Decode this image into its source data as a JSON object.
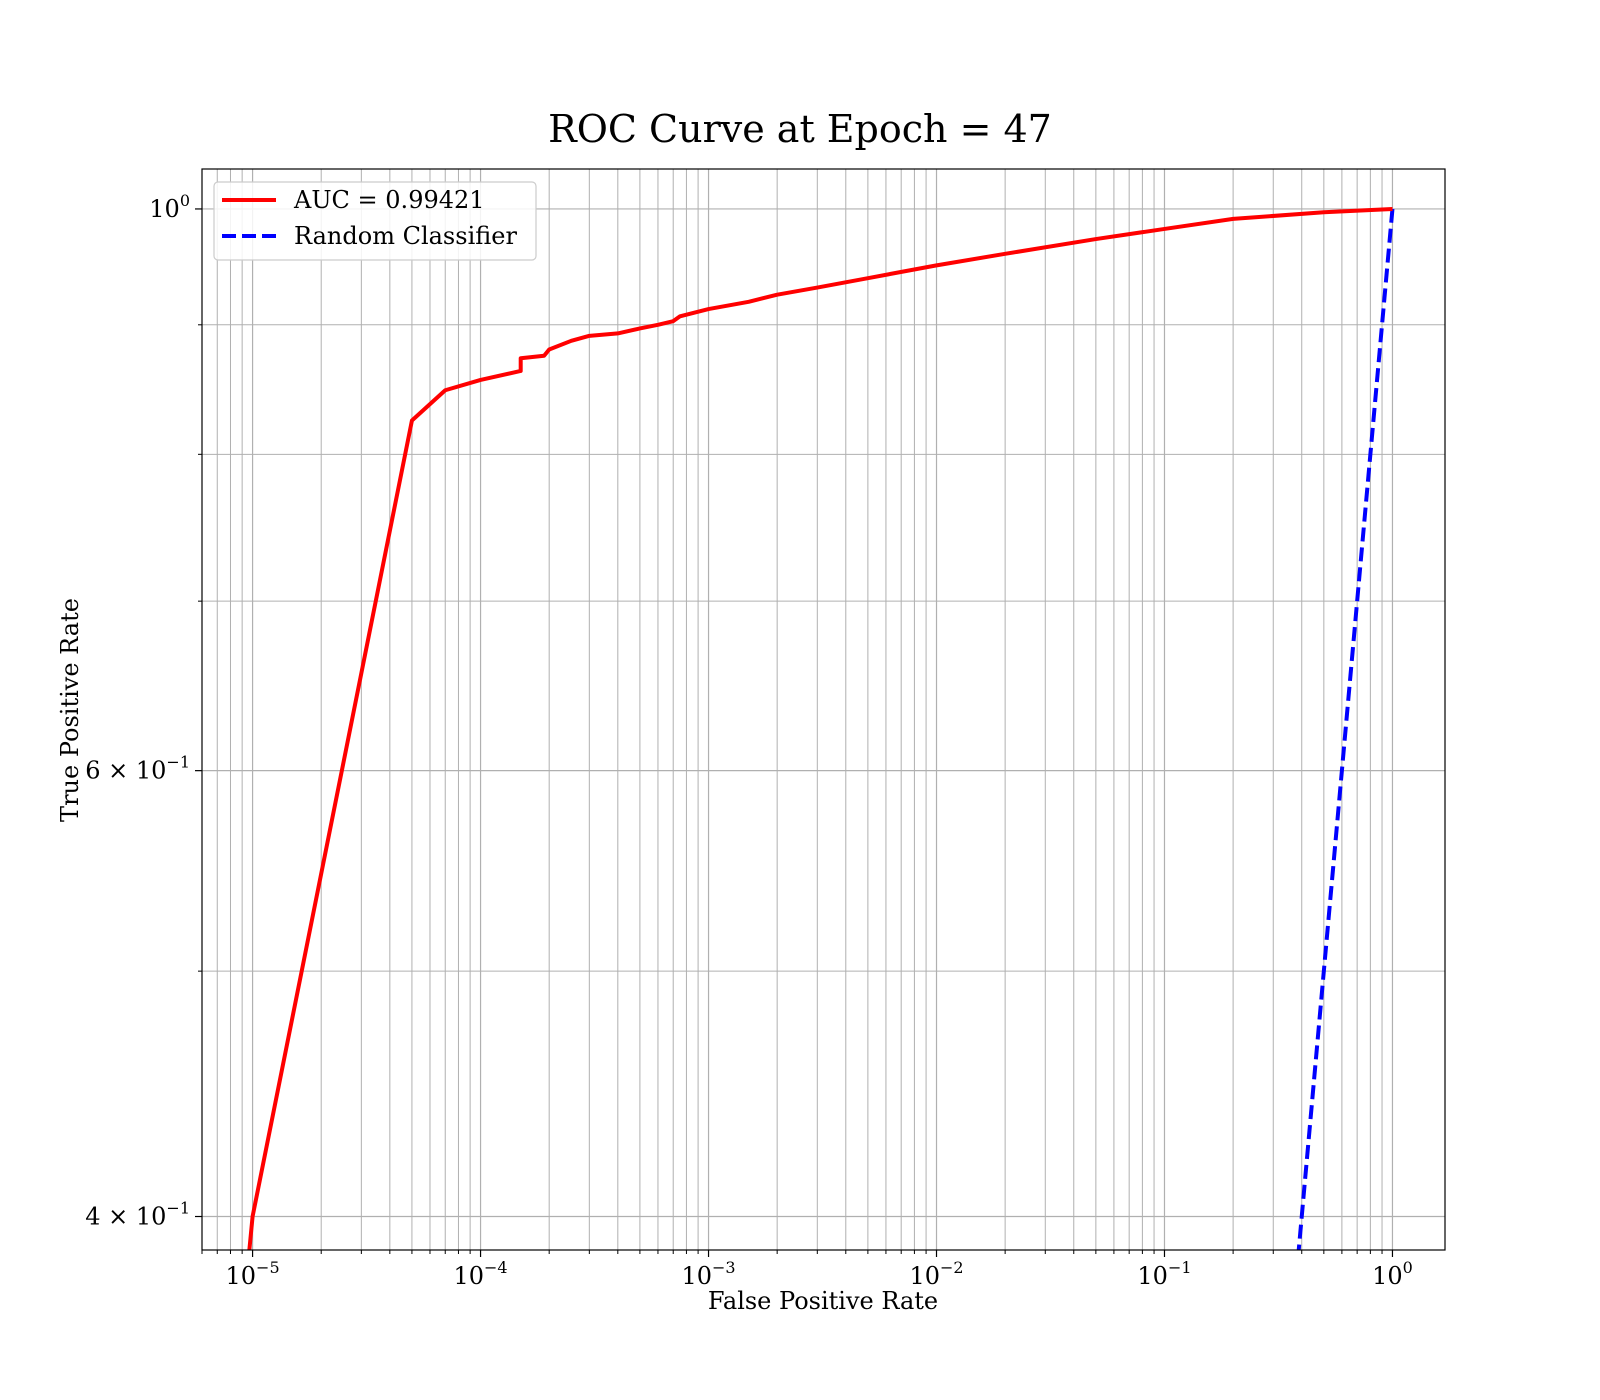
{
  "chart_data": {
    "type": "line",
    "title": "ROC Curve at Epoch = 47",
    "xlabel": "False Positive Rate",
    "ylabel": "True Positive Rate",
    "xscale": "log",
    "yscale": "log",
    "xlim": [
      6e-06,
      1.7
    ],
    "ylim": [
      0.388,
      1.037
    ],
    "grid": true,
    "grid_minor": true,
    "legend_position": "top-left",
    "x_ticks": [
      {
        "value": 1e-05,
        "base": "10",
        "exp": "−5"
      },
      {
        "value": 0.0001,
        "base": "10",
        "exp": "−4"
      },
      {
        "value": 0.001,
        "base": "10",
        "exp": "−3"
      },
      {
        "value": 0.01,
        "base": "10",
        "exp": "−2"
      },
      {
        "value": 0.1,
        "base": "10",
        "exp": "−1"
      },
      {
        "value": 1,
        "base": "10",
        "exp": "0"
      }
    ],
    "y_ticks": [
      {
        "value": 1.0,
        "base": "10",
        "exp": "0"
      },
      {
        "value": 0.6,
        "base": "6 × 10",
        "exp": "−1"
      },
      {
        "value": 0.4,
        "base": "4 × 10",
        "exp": "−1"
      }
    ],
    "y_minor_ticks": [
      0.5,
      0.7,
      0.8,
      0.9
    ],
    "series": [
      {
        "name": "AUC = 0.99421",
        "color": "#ff0000",
        "dash": "solid",
        "x": [
          9.6e-06,
          1e-05,
          5e-05,
          7e-05,
          0.0001,
          0.00015,
          0.00015,
          0.00019,
          0.0002,
          0.00025,
          0.0003,
          0.0004,
          0.0005,
          0.0006,
          0.0007,
          0.00075,
          0.001,
          0.0015,
          0.002,
          0.003,
          0.005,
          0.01,
          0.02,
          0.05,
          0.1,
          0.2,
          0.5,
          1.0
        ],
        "y": [
          0.385,
          0.4,
          0.825,
          0.848,
          0.856,
          0.863,
          0.873,
          0.875,
          0.88,
          0.887,
          0.891,
          0.893,
          0.897,
          0.9,
          0.903,
          0.907,
          0.913,
          0.919,
          0.925,
          0.931,
          0.939,
          0.95,
          0.96,
          0.973,
          0.982,
          0.991,
          0.997,
          1.0
        ]
      },
      {
        "name": "Random Classifier",
        "color": "#0000ff",
        "dash": "dashed",
        "x": [
          0.385,
          0.4,
          0.5,
          0.6,
          0.7,
          0.8,
          0.9,
          1.0
        ],
        "y": [
          0.385,
          0.4,
          0.5,
          0.6,
          0.7,
          0.8,
          0.9,
          1.0
        ]
      }
    ]
  }
}
